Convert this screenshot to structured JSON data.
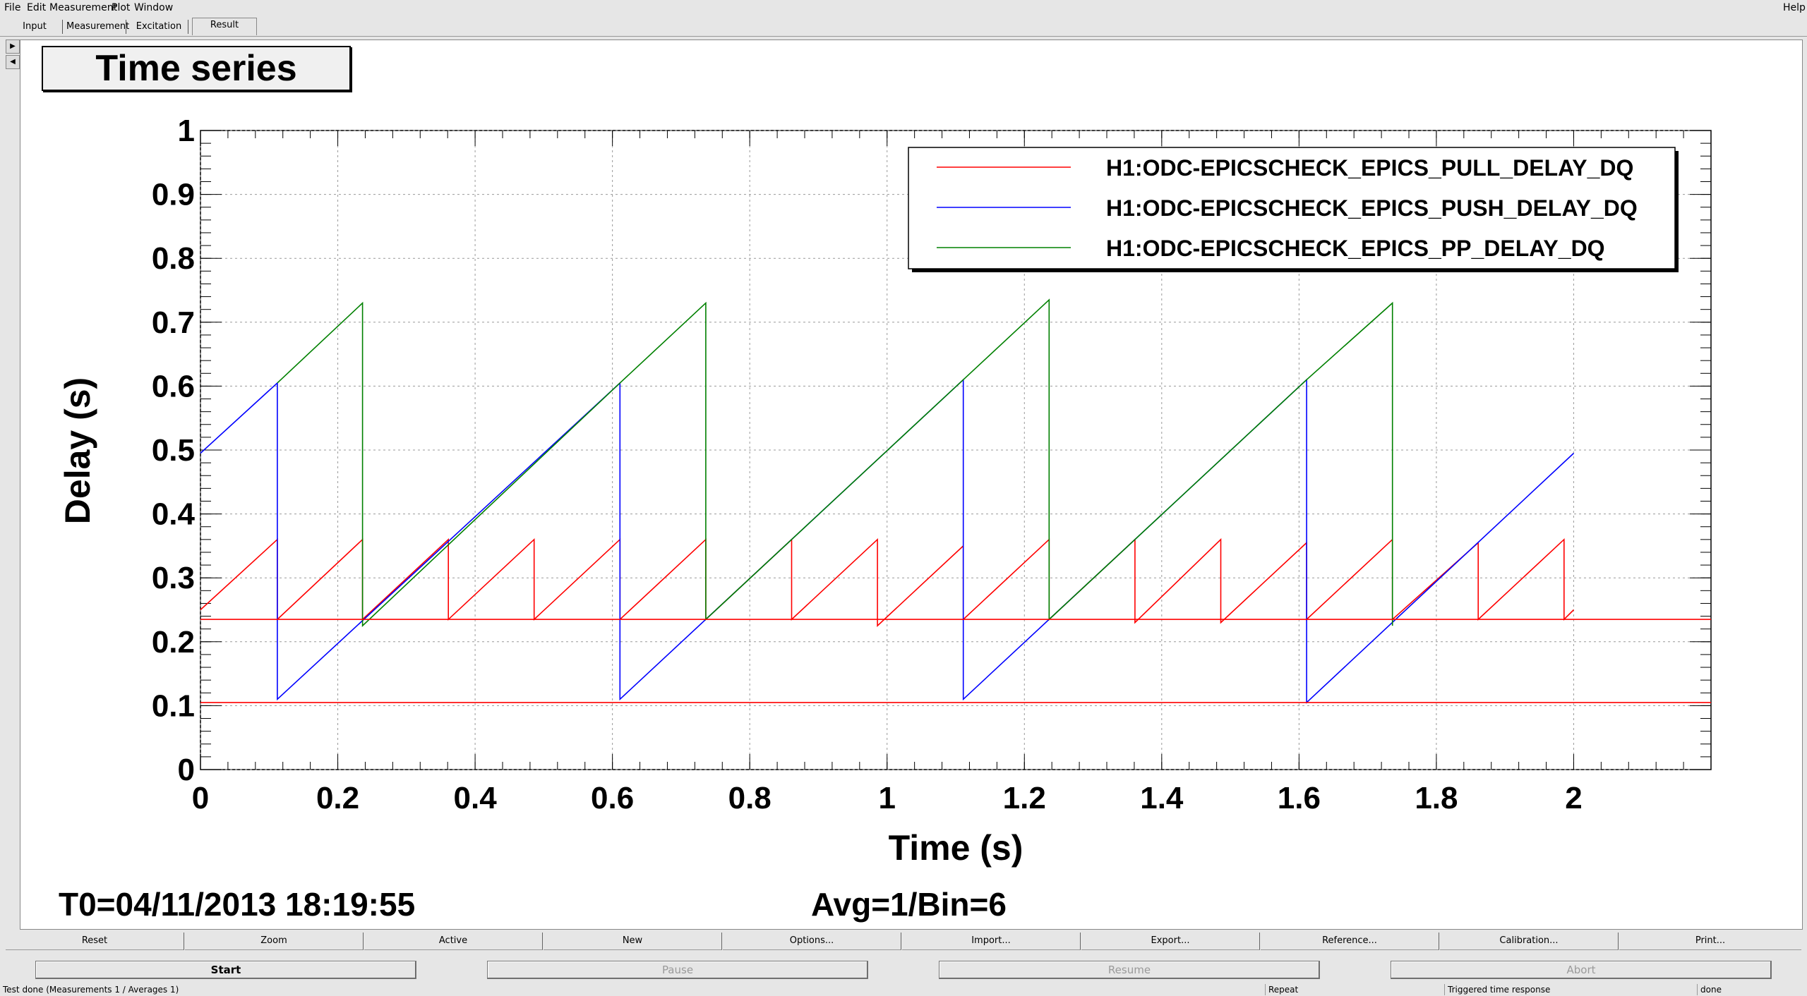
{
  "menubar": {
    "items": [
      {
        "label": "File",
        "key": "F"
      },
      {
        "label": "Edit",
        "key": "E"
      },
      {
        "label": "Measurement",
        "key": "M"
      },
      {
        "label": "Plot",
        "key": "P"
      },
      {
        "label": "Window",
        "key": "W"
      }
    ],
    "help": "Help"
  },
  "tabs": [
    "Input",
    "Measurement",
    "Excitation",
    "Result"
  ],
  "active_tab": "Result",
  "plot": {
    "title": "Time series",
    "t0": "T0=04/11/2013 18:19:55",
    "avg": "Avg=1/Bin=6"
  },
  "chart_data": {
    "type": "line",
    "title": "Time series",
    "xlabel": "Time (s)",
    "ylabel": "Delay (s)",
    "xlim": [
      0,
      2.2
    ],
    "ylim": [
      0,
      1
    ],
    "xticks": [
      "0",
      "0.2",
      "0.4",
      "0.6",
      "0.8",
      "1",
      "1.2",
      "1.4",
      "1.6",
      "1.8",
      "2"
    ],
    "yticks": [
      "0",
      "0.1",
      "0.2",
      "0.3",
      "0.4",
      "0.5",
      "0.6",
      "0.7",
      "0.8",
      "0.9",
      "1"
    ],
    "grid": true,
    "legend_position": "top-right",
    "series": [
      {
        "name": "H1:ODC-EPICSCHECK_EPICS_PULL_DELAY_DQ",
        "color": "#ff0000",
        "x": [
          0,
          0.112,
          0.112,
          0.236,
          0.236,
          0.361,
          0.361,
          0.486,
          0.486,
          0.611,
          0.611,
          0.736,
          0.736,
          0.861,
          0.861,
          0.986,
          0.986,
          1.111,
          1.111,
          1.236,
          1.236,
          1.361,
          1.361,
          1.486,
          1.486,
          1.611,
          1.611,
          1.736,
          1.736,
          1.861,
          1.861,
          1.986,
          1.986,
          2.0
        ],
        "y": [
          0.25,
          0.36,
          0.235,
          0.36,
          0.235,
          0.36,
          0.235,
          0.36,
          0.235,
          0.36,
          0.235,
          0.36,
          0.235,
          0.36,
          0.235,
          0.36,
          0.225,
          0.35,
          0.235,
          0.36,
          0.235,
          0.36,
          0.23,
          0.36,
          0.23,
          0.355,
          0.235,
          0.36,
          0.235,
          0.355,
          0.235,
          0.36,
          0.235,
          0.25
        ]
      },
      {
        "name": "H1:ODC-EPICSCHECK_EPICS_PUSH_DELAY_DQ",
        "color": "#0000ff",
        "x": [
          0,
          0.112,
          0.112,
          0.611,
          0.611,
          1.111,
          1.111,
          1.611,
          1.611,
          2.0
        ],
        "y": [
          0.495,
          0.605,
          0.11,
          0.605,
          0.11,
          0.61,
          0.11,
          0.61,
          0.105,
          0.495
        ]
      },
      {
        "name": "H1:ODC-EPICSCHECK_EPICS_PP_DELAY_DQ",
        "color": "#008000",
        "x": [
          0.112,
          0.236,
          0.236,
          0.611,
          0.736,
          0.736,
          1.111,
          1.236,
          1.236,
          1.611,
          1.736,
          1.736
        ],
        "y": [
          0.605,
          0.73,
          0.225,
          0.605,
          0.73,
          0.235,
          0.61,
          0.735,
          0.235,
          0.61,
          0.73,
          0.225
        ]
      },
      {
        "name": "",
        "color": "#ff0000",
        "x": [
          0,
          2.2
        ],
        "y": [
          0.235,
          0.235
        ]
      },
      {
        "name": "",
        "color": "#ff0000",
        "x": [
          0,
          2.2
        ],
        "y": [
          0.105,
          0.105
        ]
      }
    ]
  },
  "toolbar": [
    "Reset",
    "Zoom",
    "Active",
    "New",
    "Options...",
    "Import...",
    "Export...",
    "Reference...",
    "Calibration...",
    "Print..."
  ],
  "controls": [
    {
      "label": "Start",
      "enabled": true
    },
    {
      "label": "Pause",
      "enabled": false
    },
    {
      "label": "Resume",
      "enabled": false
    },
    {
      "label": "Abort",
      "enabled": false
    }
  ],
  "status": {
    "main": "Test done (Measurements 1 / Averages 1)",
    "mode": "Repeat",
    "type": "Triggered time response",
    "state": "done"
  }
}
